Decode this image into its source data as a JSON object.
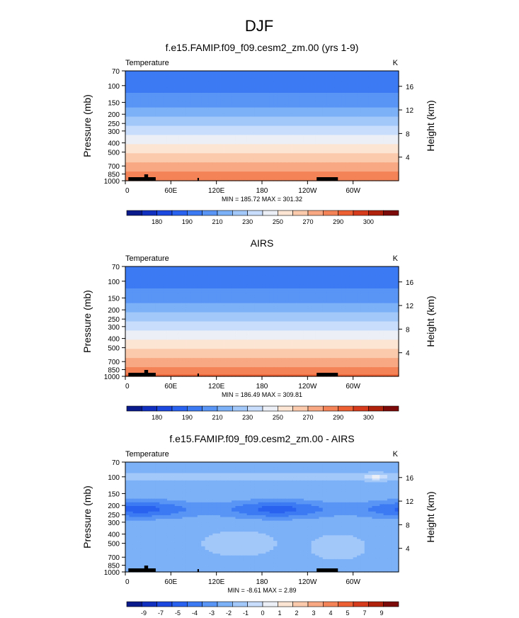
{
  "figure": {
    "title": "DJF"
  },
  "colors": {
    "cb_abs": [
      "#0a1a8a",
      "#1230c0",
      "#1c48e0",
      "#2a62f0",
      "#3c7af4",
      "#5895f5",
      "#7cb0f7",
      "#a2c8fa",
      "#c8ddfb",
      "#eceff6",
      "#fde5d4",
      "#fbcaad",
      "#f8a882",
      "#f48458",
      "#ec6034",
      "#d63c1c",
      "#b0220c",
      "#7c0a08"
    ],
    "cb_diff": [
      "#0a1a8a",
      "#1230c0",
      "#1c48e0",
      "#2a62f0",
      "#3c7af4",
      "#5895f5",
      "#7cb0f7",
      "#a2c8fa",
      "#c8ddfb",
      "#eceff6",
      "#fde5d4",
      "#fbcaad",
      "#f8a882",
      "#f48458",
      "#ec6034",
      "#d63c1c",
      "#b0220c",
      "#7c0a08"
    ],
    "orography": "#000000"
  },
  "chart_data": [
    {
      "type": "heatmap",
      "title": "f.e15.FAMIP.f09_f09.cesm2_zm.00 (yrs 1-9)",
      "left_label": "Temperature",
      "units": "K",
      "ylabel": "Pressure (mb)",
      "ylabel_right": "Height (km)",
      "x_ticks": [
        "0",
        "60E",
        "120E",
        "180",
        "120W",
        "60W"
      ],
      "x_tick_values": [
        0,
        60,
        120,
        180,
        240,
        300
      ],
      "x_range": [
        0,
        360
      ],
      "y_ticks": [
        "70",
        "100",
        "150",
        "200",
        "250",
        "300",
        "400",
        "500",
        "700",
        "850",
        "1000"
      ],
      "y_tick_values": [
        70,
        100,
        150,
        200,
        250,
        300,
        400,
        500,
        700,
        850,
        1000
      ],
      "y_range": [
        70,
        1000
      ],
      "height_ticks": [
        "16",
        "12",
        "8",
        "4"
      ],
      "height_tick_values": [
        16,
        12,
        8,
        4
      ],
      "stats": "MIN = 185.72  MAX = 301.32",
      "min": 185.72,
      "max": 301.32,
      "colorbar_labels": [
        "180",
        "190",
        "210",
        "230",
        "250",
        "270",
        "290",
        "300"
      ],
      "colorbar_levels": [
        175,
        180,
        185,
        190,
        200,
        210,
        220,
        230,
        240,
        250,
        260,
        270,
        280,
        290,
        295,
        300,
        305
      ],
      "field_kind": "abs",
      "fill_max": 301.32
    },
    {
      "type": "heatmap",
      "title": "AIRS",
      "left_label": "Temperature",
      "units": "K",
      "ylabel": "Pressure (mb)",
      "ylabel_right": "Height (km)",
      "x_ticks": [
        "0",
        "60E",
        "120E",
        "180",
        "120W",
        "60W"
      ],
      "x_tick_values": [
        0,
        60,
        120,
        180,
        240,
        300
      ],
      "x_range": [
        0,
        360
      ],
      "y_ticks": [
        "70",
        "100",
        "150",
        "200",
        "250",
        "300",
        "400",
        "500",
        "700",
        "850",
        "1000"
      ],
      "y_tick_values": [
        70,
        100,
        150,
        200,
        250,
        300,
        400,
        500,
        700,
        850,
        1000
      ],
      "y_range": [
        70,
        1000
      ],
      "height_ticks": [
        "16",
        "12",
        "8",
        "4"
      ],
      "height_tick_values": [
        16,
        12,
        8,
        4
      ],
      "stats": "MIN = 186.49  MAX = 309.81",
      "min": 186.49,
      "max": 309.81,
      "colorbar_labels": [
        "180",
        "190",
        "210",
        "230",
        "250",
        "270",
        "290",
        "300"
      ],
      "colorbar_levels": [
        175,
        180,
        185,
        190,
        200,
        210,
        220,
        230,
        240,
        250,
        260,
        270,
        280,
        290,
        295,
        300,
        305
      ],
      "field_kind": "abs",
      "fill_max": 309.81
    },
    {
      "type": "heatmap",
      "title": "f.e15.FAMIP.f09_f09.cesm2_zm.00 - AIRS",
      "left_label": "Temperature",
      "units": "K",
      "ylabel": "Pressure (mb)",
      "ylabel_right": "Height (km)",
      "x_ticks": [
        "0",
        "60E",
        "120E",
        "180",
        "120W",
        "60W"
      ],
      "x_tick_values": [
        0,
        60,
        120,
        180,
        240,
        300
      ],
      "x_range": [
        0,
        360
      ],
      "y_ticks": [
        "70",
        "100",
        "150",
        "200",
        "250",
        "300",
        "400",
        "500",
        "700",
        "850",
        "1000"
      ],
      "y_tick_values": [
        70,
        100,
        150,
        200,
        250,
        300,
        400,
        500,
        700,
        850,
        1000
      ],
      "y_range": [
        70,
        1000
      ],
      "height_ticks": [
        "16",
        "12",
        "8",
        "4"
      ],
      "height_tick_values": [
        16,
        12,
        8,
        4
      ],
      "stats": "MIN = -8.61  MAX =  2.89",
      "min": -8.61,
      "max": 2.89,
      "colorbar_labels": [
        "-9",
        "-7",
        "-5",
        "-4",
        "-3",
        "-2",
        "-1",
        "0",
        "1",
        "2",
        "3",
        "4",
        "5",
        "7",
        "9"
      ],
      "colorbar_levels": [
        -9,
        -7,
        -5,
        -4,
        -3,
        -2,
        -1,
        0,
        1,
        2,
        3,
        4,
        5,
        7,
        9
      ],
      "field_kind": "diff",
      "fill_max": 2.89
    }
  ]
}
